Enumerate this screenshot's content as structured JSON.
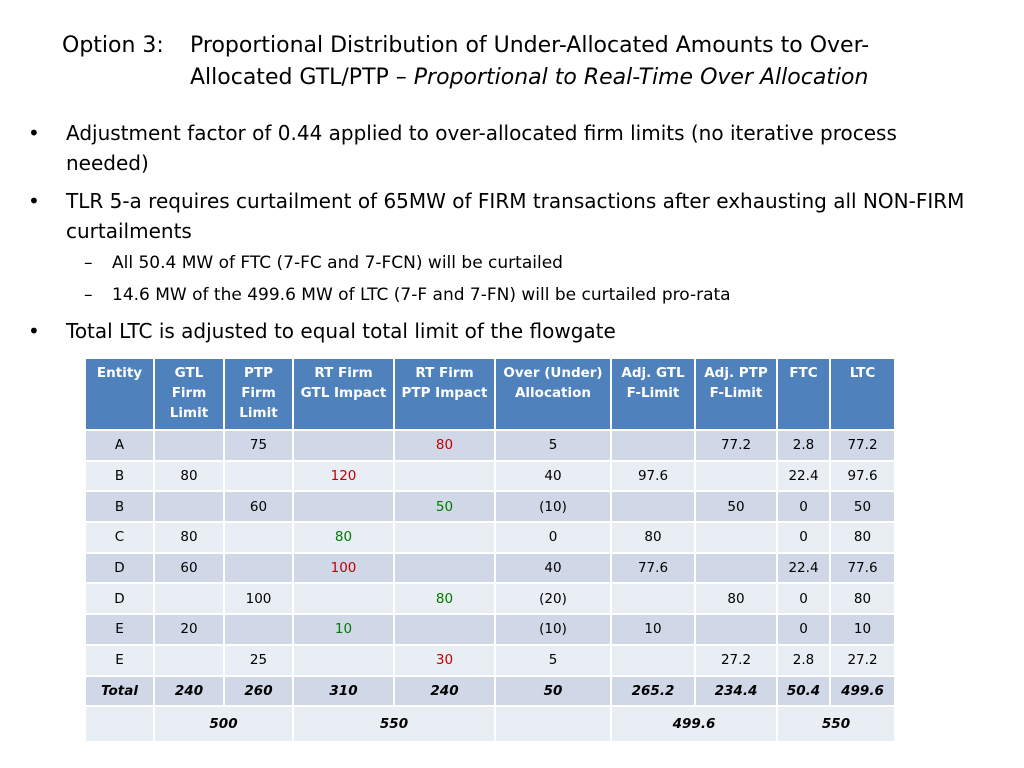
{
  "title": {
    "prefix": "Option 3:",
    "line1": "Proportional Distribution of Under-Allocated Amounts to Over-",
    "line2_normal": "Allocated GTL/PTP – ",
    "line2_italic": "Proportional to Real-Time Over Allocation"
  },
  "bullets": [
    {
      "level": 1,
      "text": "Adjustment factor of 0.44 applied to over-allocated firm limits (no iterative process needed)"
    },
    {
      "level": 1,
      "text": "TLR 5-a requires curtailment of 65MW of FIRM transactions after exhausting all NON-FIRM curtailments"
    },
    {
      "level": 2,
      "text": "All 50.4 MW of FTC (7-FC and 7-FCN) will be curtailed"
    },
    {
      "level": 2,
      "text": "14.6 MW of the 499.6 MW of LTC (7-F and 7-FN) will be curtailed pro-rata"
    },
    {
      "level": 1,
      "text": "Total LTC is adjusted to equal total limit of the flowgate"
    }
  ],
  "bullet_marks": {
    "level1": "•",
    "level2": "–"
  },
  "colors": {
    "header_bg": "#4f81bd",
    "row_odd": "#d0d8e8",
    "row_even": "#e9edf4",
    "red": "#c00000",
    "green": "#007a00"
  },
  "table": {
    "headers": [
      [
        "Entity"
      ],
      [
        "GTL",
        "Firm",
        "Limit"
      ],
      [
        "PTP",
        "Firm",
        "Limit"
      ],
      [
        "RT Firm",
        "GTL Impact"
      ],
      [
        "RT Firm",
        "PTP Impact"
      ],
      [
        "Over (Under)",
        "Allocation"
      ],
      [
        "Adj. GTL",
        "F-Limit"
      ],
      [
        "Adj. PTP",
        "F-Limit"
      ],
      [
        "FTC"
      ],
      [
        "LTC"
      ]
    ],
    "rows": [
      {
        "cells": [
          "A",
          "",
          "75",
          "",
          "80",
          "5",
          "",
          "77.2",
          "2.8",
          "77.2"
        ],
        "colors": [
          "",
          "",
          "",
          "",
          "red",
          "",
          "",
          "",
          "",
          ""
        ]
      },
      {
        "cells": [
          "B",
          "80",
          "",
          "120",
          "",
          "40",
          "97.6",
          "",
          "22.4",
          "97.6"
        ],
        "colors": [
          "",
          "",
          "",
          "red",
          "",
          "",
          "",
          "",
          "",
          ""
        ]
      },
      {
        "cells": [
          "B",
          "",
          "60",
          "",
          "50",
          "(10)",
          "",
          "50",
          "0",
          "50"
        ],
        "colors": [
          "",
          "",
          "",
          "",
          "green",
          "",
          "",
          "",
          "",
          ""
        ]
      },
      {
        "cells": [
          "C",
          "80",
          "",
          "80",
          "",
          "0",
          "80",
          "",
          "0",
          "80"
        ],
        "colors": [
          "",
          "",
          "",
          "green",
          "",
          "",
          "",
          "",
          "",
          ""
        ]
      },
      {
        "cells": [
          "D",
          "60",
          "",
          "100",
          "",
          "40",
          "77.6",
          "",
          "22.4",
          "77.6"
        ],
        "colors": [
          "",
          "",
          "",
          "red",
          "",
          "",
          "",
          "",
          "",
          ""
        ]
      },
      {
        "cells": [
          "D",
          "",
          "100",
          "",
          "80",
          "(20)",
          "",
          "80",
          "0",
          "80"
        ],
        "colors": [
          "",
          "",
          "",
          "",
          "green",
          "",
          "",
          "",
          "",
          ""
        ]
      },
      {
        "cells": [
          "E",
          "20",
          "",
          "10",
          "",
          "(10)",
          "10",
          "",
          "0",
          "10"
        ],
        "colors": [
          "",
          "",
          "",
          "green",
          "",
          "",
          "",
          "",
          "",
          ""
        ]
      },
      {
        "cells": [
          "E",
          "",
          "25",
          "",
          "30",
          "5",
          "",
          "27.2",
          "2.8",
          "27.2"
        ],
        "colors": [
          "",
          "",
          "",
          "",
          "red",
          "",
          "",
          "",
          "",
          ""
        ]
      }
    ],
    "total_row": [
      "Total",
      "240",
      "260",
      "310",
      "240",
      "50",
      "265.2",
      "234.4",
      "50.4",
      "499.6"
    ],
    "sum_row": {
      "gtl_ptp_limit": "500",
      "rt_firm_impact": "550",
      "adj_f_limit": "499.6",
      "ftc_ltc": "550"
    }
  }
}
